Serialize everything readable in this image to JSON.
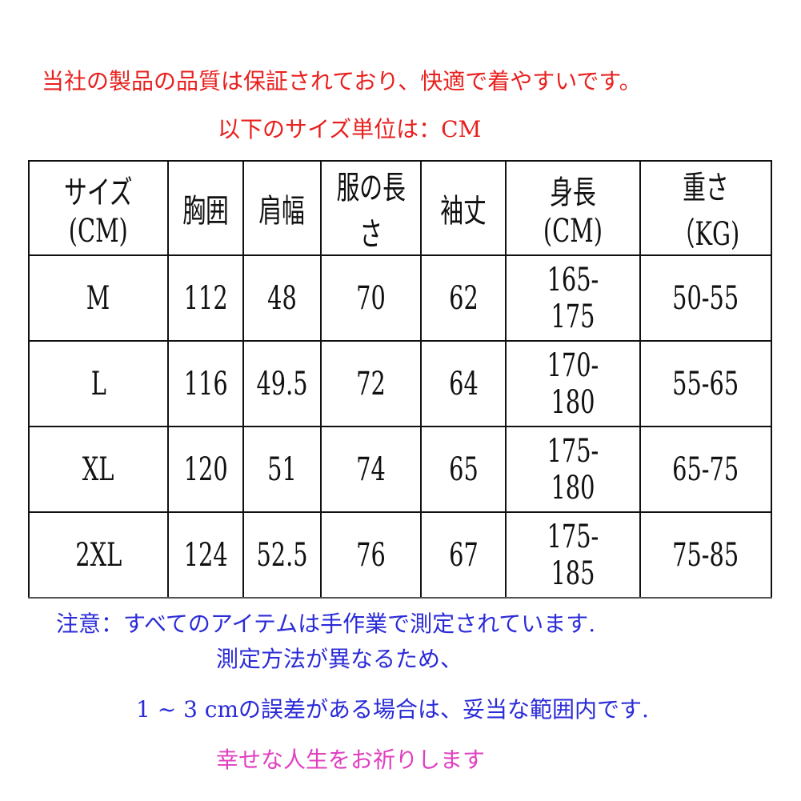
{
  "header": {
    "line1": "当社の製品の品質は保証されており、快適で着やすいです。",
    "line2": "以下のサイズ単位は：CM"
  },
  "table": {
    "columns": [
      "サイズ(CM)",
      "胸囲",
      "肩幅",
      "服の長さ",
      "袖丈",
      "身長(CM)",
      "重さ（KG)"
    ],
    "rows": [
      [
        "M",
        "112",
        "48",
        "70",
        "62",
        "165-175",
        "50-55"
      ],
      [
        "L",
        "116",
        "49.5",
        "72",
        "64",
        "170-180",
        "55-65"
      ],
      [
        "XL",
        "120",
        "51",
        "74",
        "65",
        "175-180",
        "65-75"
      ],
      [
        "2XL",
        "124",
        "52.5",
        "76",
        "67",
        "175-185",
        "75-85"
      ]
    ]
  },
  "notes": {
    "line1": "注意：すべてのアイテムは手作業で測定されています.",
    "line2": "測定方法が異なるため、",
    "line3": "1 ~ 3 cmの誤差がある場合は、妥当な範囲内です.",
    "line4": "幸せな人生をお祈りします"
  },
  "colors": {
    "header": "#e8201e",
    "notes": "#2b2bd8",
    "closing": "#e040c0"
  }
}
